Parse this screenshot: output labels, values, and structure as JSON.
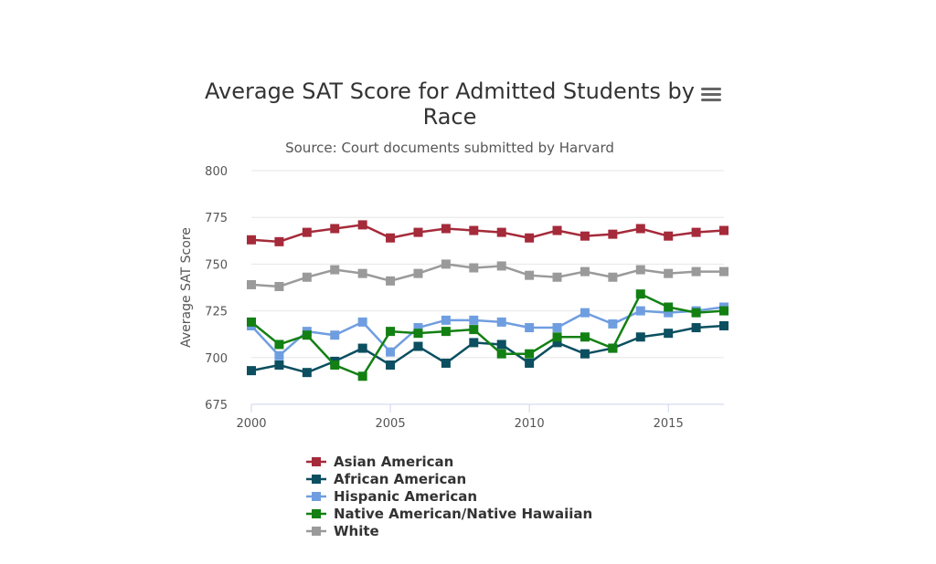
{
  "chart_data": {
    "type": "line",
    "title_lines": [
      "Average SAT Score for Admitted Students by",
      "Race"
    ],
    "subtitle": "Source: Court documents submitted by Harvard",
    "xlabel": "",
    "ylabel": "Average SAT Score",
    "xlim": [
      2000,
      2017
    ],
    "ylim": [
      675,
      800
    ],
    "x_ticks": [
      2000,
      2005,
      2010,
      2015
    ],
    "y_ticks": [
      675,
      700,
      725,
      750,
      775,
      800
    ],
    "grid": "horizontal",
    "legend_position": "bottom",
    "menu_icon": "hamburger-menu-icon",
    "x": [
      2000,
      2001,
      2002,
      2003,
      2004,
      2005,
      2006,
      2007,
      2008,
      2009,
      2010,
      2011,
      2012,
      2013,
      2014,
      2015,
      2016,
      2017
    ],
    "series": [
      {
        "name": "Asian American",
        "color": "#a52a3a",
        "values": [
          763,
          762,
          767,
          769,
          771,
          764,
          767,
          769,
          768,
          767,
          764,
          768,
          765,
          766,
          769,
          765,
          767,
          768
        ]
      },
      {
        "name": "African American",
        "color": "#0b4f60",
        "values": [
          693,
          696,
          692,
          698,
          705,
          696,
          706,
          697,
          708,
          707,
          697,
          708,
          702,
          705,
          711,
          713,
          716,
          717
        ]
      },
      {
        "name": "Hispanic American",
        "color": "#6f9ee0",
        "values": [
          717,
          701,
          714,
          712,
          719,
          703,
          716,
          720,
          720,
          719,
          716,
          716,
          724,
          718,
          725,
          724,
          725,
          727
        ]
      },
      {
        "name": "Native American/Native Hawaiian",
        "color": "#138013",
        "values": [
          719,
          707,
          712,
          696,
          690,
          714,
          713,
          714,
          715,
          702,
          702,
          711,
          711,
          705,
          734,
          727,
          724,
          725
        ]
      },
      {
        "name": "White",
        "color": "#9a9a9a",
        "values": [
          739,
          738,
          743,
          747,
          745,
          741,
          745,
          750,
          748,
          749,
          744,
          743,
          746,
          743,
          747,
          745,
          746,
          746
        ]
      }
    ]
  }
}
